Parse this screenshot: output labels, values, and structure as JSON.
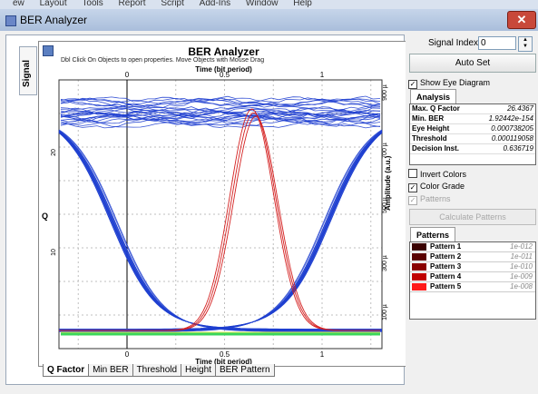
{
  "menubar": {
    "items": [
      "ew",
      "Layout",
      "Tools",
      "Report",
      "Script",
      "Add-Ins",
      "Window",
      "Help"
    ]
  },
  "window": {
    "title": "BER Analyzer",
    "close_glyph": "✕"
  },
  "left_tab": "Signal",
  "plot": {
    "title": "BER Analyzer",
    "instruction": "Dbl Click On Objects to open properties.  Move Objects with Mouse Drag",
    "top_xlabel": "Time (bit period)",
    "bottom_xlabel": "Time (bit period)",
    "ylabel": "Q",
    "y2label": "Amplitude (a.u.)",
    "top_ticks": [
      "0",
      "0.5",
      "1"
    ],
    "bottom_ticks": [
      "0",
      "0.5",
      "1"
    ],
    "left_ticks": [
      "20",
      "10"
    ],
    "right_ticks": [
      "900 µ",
      "700 µ",
      "500 µ",
      "300 µ",
      "100 µ"
    ]
  },
  "bottom_tabs": [
    "Q Factor",
    "Min BER",
    "Threshold",
    "Height",
    "BER Pattern"
  ],
  "right_panel": {
    "signal_index_label": "Signal Index",
    "signal_index_value": "0",
    "auto_set_label": "Auto Set",
    "show_eye_label": "Show Eye Diagram",
    "analysis_tab": "Analysis",
    "analysis": [
      {
        "key": "Max. Q Factor",
        "value": "26.4367"
      },
      {
        "key": "Min. BER",
        "value": "1.92442e-154"
      },
      {
        "key": "Eye Height",
        "value": "0.000738205"
      },
      {
        "key": "Threshold",
        "value": "0.000119058"
      },
      {
        "key": "Decision Inst.",
        "value": "0.636719"
      }
    ],
    "invert_colors_label": "Invert Colors",
    "color_grade_label": "Color Grade",
    "patterns_label": "Patterns",
    "calculate_patterns_label": "Calculate Patterns",
    "patterns_tab": "Patterns",
    "patterns": [
      {
        "key": "Pattern 1",
        "value": "1e-012",
        "color": "#3a0000"
      },
      {
        "key": "Pattern 2",
        "value": "1e-011",
        "color": "#5a0000"
      },
      {
        "key": "Pattern 3",
        "value": "1e-010",
        "color": "#8a0000"
      },
      {
        "key": "Pattern 4",
        "value": "1e-009",
        "color": "#c00000"
      },
      {
        "key": "Pattern 5",
        "value": "1e-008",
        "color": "#ff1a1a"
      }
    ]
  },
  "colors": {
    "eye_trace": "#1f3fd0",
    "q_curve": "#d42020",
    "grid": "#bfbfbf"
  }
}
